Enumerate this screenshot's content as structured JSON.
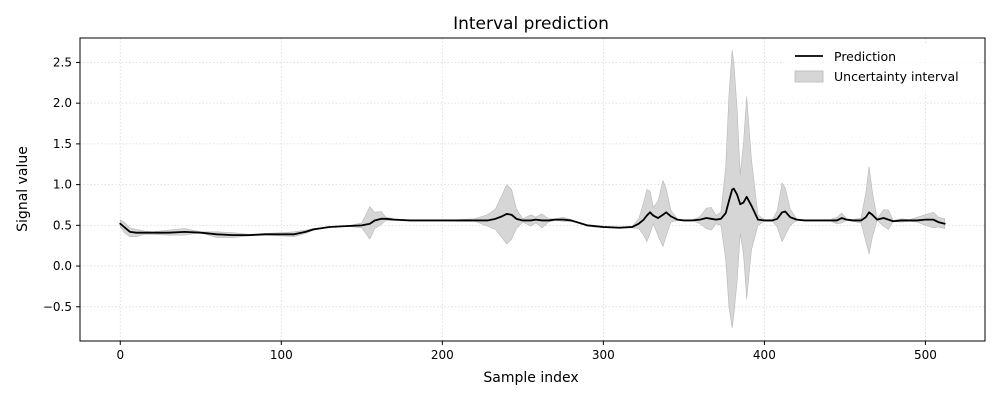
{
  "chart_data": {
    "type": "line",
    "title": "Interval prediction",
    "xlabel": "Sample index",
    "ylabel": "Signal value",
    "xlim": [
      -25,
      537
    ],
    "ylim": [
      -0.92,
      2.8
    ],
    "xticks": [
      0,
      100,
      200,
      300,
      400,
      500
    ],
    "yticks": [
      -0.5,
      0.0,
      0.5,
      1.0,
      1.5,
      2.0,
      2.5
    ],
    "ytick_labels": [
      "−0.5",
      "0.0",
      "0.5",
      "1.0",
      "1.5",
      "2.0",
      "2.5"
    ],
    "grid": true,
    "legend_position": "top-right",
    "colors": {
      "prediction": "#000000",
      "interval_fill": "#d6d6d6",
      "interval_edge": "#b8b8b8"
    },
    "series": [
      {
        "name": "Prediction",
        "kind": "line",
        "x": [
          0,
          3,
          6,
          10,
          15,
          20,
          30,
          40,
          50,
          60,
          70,
          80,
          90,
          100,
          108,
          115,
          120,
          130,
          140,
          150,
          155,
          158,
          162,
          165,
          170,
          180,
          190,
          200,
          210,
          220,
          228,
          233,
          237,
          240,
          243,
          246,
          250,
          255,
          258,
          262,
          266,
          270,
          275,
          280,
          285,
          290,
          300,
          310,
          318,
          322,
          325,
          327,
          329,
          331,
          334,
          337,
          339,
          342,
          346,
          350,
          355,
          360,
          364,
          367,
          370,
          373,
          376,
          378,
          380,
          381,
          383,
          385,
          387,
          389,
          392,
          396,
          400,
          405,
          408,
          411,
          413,
          416,
          420,
          425,
          430,
          440,
          445,
          448,
          451,
          455,
          460,
          463,
          465,
          467,
          470,
          474,
          477,
          480,
          485,
          490,
          495,
          500,
          505,
          508,
          512
        ],
        "y": [
          0.52,
          0.47,
          0.42,
          0.41,
          0.41,
          0.41,
          0.41,
          0.42,
          0.41,
          0.39,
          0.38,
          0.38,
          0.39,
          0.39,
          0.39,
          0.42,
          0.45,
          0.48,
          0.49,
          0.5,
          0.52,
          0.56,
          0.58,
          0.58,
          0.57,
          0.56,
          0.56,
          0.56,
          0.56,
          0.56,
          0.56,
          0.58,
          0.61,
          0.64,
          0.63,
          0.58,
          0.56,
          0.56,
          0.57,
          0.56,
          0.56,
          0.57,
          0.57,
          0.56,
          0.53,
          0.5,
          0.48,
          0.47,
          0.48,
          0.52,
          0.57,
          0.62,
          0.66,
          0.62,
          0.59,
          0.63,
          0.66,
          0.61,
          0.57,
          0.56,
          0.56,
          0.57,
          0.59,
          0.58,
          0.57,
          0.58,
          0.65,
          0.8,
          0.94,
          0.95,
          0.88,
          0.76,
          0.78,
          0.85,
          0.74,
          0.57,
          0.56,
          0.56,
          0.58,
          0.66,
          0.67,
          0.6,
          0.57,
          0.56,
          0.56,
          0.56,
          0.56,
          0.59,
          0.57,
          0.56,
          0.56,
          0.6,
          0.66,
          0.63,
          0.57,
          0.59,
          0.57,
          0.55,
          0.56,
          0.56,
          0.56,
          0.57,
          0.57,
          0.54,
          0.52
        ]
      },
      {
        "name": "Uncertainty interval",
        "kind": "band",
        "x": [
          0,
          3,
          6,
          10,
          15,
          20,
          30,
          40,
          50,
          60,
          70,
          80,
          90,
          100,
          108,
          115,
          120,
          130,
          140,
          150,
          155,
          158,
          162,
          165,
          170,
          180,
          190,
          200,
          210,
          220,
          228,
          233,
          237,
          240,
          243,
          246,
          250,
          255,
          258,
          262,
          266,
          270,
          275,
          280,
          285,
          290,
          300,
          310,
          318,
          322,
          325,
          327,
          329,
          331,
          334,
          337,
          339,
          342,
          346,
          350,
          355,
          360,
          364,
          367,
          370,
          373,
          376,
          378,
          380,
          381,
          383,
          385,
          387,
          389,
          392,
          396,
          400,
          405,
          408,
          411,
          413,
          416,
          420,
          425,
          430,
          440,
          445,
          448,
          451,
          455,
          460,
          463,
          465,
          467,
          470,
          474,
          477,
          480,
          485,
          490,
          495,
          500,
          505,
          508,
          512
        ],
        "lower": [
          0.48,
          0.4,
          0.36,
          0.36,
          0.39,
          0.39,
          0.38,
          0.38,
          0.41,
          0.35,
          0.35,
          0.37,
          0.38,
          0.37,
          0.36,
          0.4,
          0.44,
          0.48,
          0.49,
          0.47,
          0.33,
          0.46,
          0.51,
          0.56,
          0.56,
          0.56,
          0.56,
          0.56,
          0.55,
          0.55,
          0.49,
          0.45,
          0.35,
          0.27,
          0.33,
          0.46,
          0.54,
          0.49,
          0.53,
          0.47,
          0.54,
          0.56,
          0.55,
          0.55,
          0.53,
          0.49,
          0.47,
          0.47,
          0.47,
          0.46,
          0.38,
          0.3,
          0.4,
          0.52,
          0.37,
          0.24,
          0.37,
          0.54,
          0.56,
          0.56,
          0.56,
          0.52,
          0.46,
          0.44,
          0.52,
          0.5,
          0.08,
          -0.5,
          -0.76,
          -0.6,
          -0.2,
          0.4,
          0.15,
          -0.4,
          0.2,
          0.5,
          0.55,
          0.55,
          0.48,
          0.3,
          0.38,
          0.5,
          0.56,
          0.56,
          0.56,
          0.56,
          0.52,
          0.53,
          0.56,
          0.55,
          0.53,
          0.3,
          0.15,
          0.35,
          0.56,
          0.49,
          0.45,
          0.55,
          0.54,
          0.55,
          0.54,
          0.5,
          0.47,
          0.48,
          0.46
        ],
        "upper": [
          0.57,
          0.53,
          0.47,
          0.45,
          0.43,
          0.42,
          0.44,
          0.46,
          0.42,
          0.42,
          0.41,
          0.39,
          0.4,
          0.41,
          0.42,
          0.44,
          0.46,
          0.48,
          0.49,
          0.53,
          0.73,
          0.66,
          0.67,
          0.6,
          0.58,
          0.56,
          0.56,
          0.56,
          0.57,
          0.58,
          0.63,
          0.7,
          0.87,
          1.0,
          0.94,
          0.7,
          0.58,
          0.63,
          0.6,
          0.64,
          0.58,
          0.58,
          0.6,
          0.57,
          0.53,
          0.51,
          0.49,
          0.48,
          0.49,
          0.58,
          0.78,
          0.94,
          0.92,
          0.72,
          0.8,
          1.05,
          0.95,
          0.68,
          0.58,
          0.56,
          0.56,
          0.61,
          0.71,
          0.72,
          0.62,
          0.66,
          1.22,
          2.1,
          2.65,
          2.5,
          1.95,
          1.12,
          1.5,
          2.08,
          1.3,
          0.63,
          0.57,
          0.57,
          0.68,
          1.02,
          0.96,
          0.7,
          0.58,
          0.56,
          0.56,
          0.56,
          0.6,
          0.65,
          0.58,
          0.57,
          0.59,
          0.9,
          1.22,
          0.92,
          0.58,
          0.69,
          0.69,
          0.56,
          0.58,
          0.57,
          0.6,
          0.63,
          0.66,
          0.6,
          0.58
        ]
      }
    ]
  }
}
